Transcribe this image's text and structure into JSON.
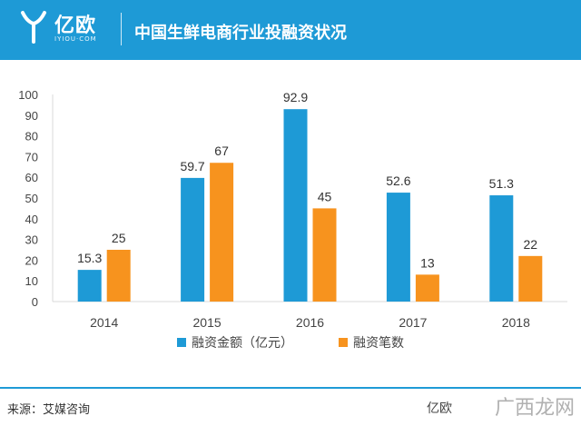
{
  "header": {
    "logo_text": "亿欧",
    "logo_sub": "IYIOU·COM",
    "title": "中国生鲜电商行业投融资状况"
  },
  "colors": {
    "header": "#1e9ad6",
    "series1": "#1e9ad6",
    "series2": "#f7931e"
  },
  "chart_data": {
    "type": "bar",
    "categories": [
      "2014",
      "2015",
      "2016",
      "2017",
      "2018"
    ],
    "series": [
      {
        "name": "融资金额（亿元）",
        "values": [
          15.3,
          59.7,
          92.9,
          52.6,
          51.3
        ],
        "labels": [
          "15.3",
          "59.7",
          "92.9",
          "52.6",
          "51.3"
        ],
        "color": "#1e9ad6"
      },
      {
        "name": "融资笔数",
        "values": [
          25,
          67,
          45,
          13,
          22
        ],
        "labels": [
          "25",
          "67",
          "45",
          "13",
          "22"
        ],
        "color": "#f7931e"
      }
    ],
    "ylim": [
      0,
      100
    ],
    "yticks": [
      "0",
      "10",
      "20",
      "30",
      "40",
      "50",
      "60",
      "70",
      "80",
      "90",
      "100"
    ],
    "legend": "bottom",
    "grid": false
  },
  "footer": {
    "source": "来源：艾媒咨询",
    "brand": "亿欧",
    "watermark": "广西龙网"
  }
}
